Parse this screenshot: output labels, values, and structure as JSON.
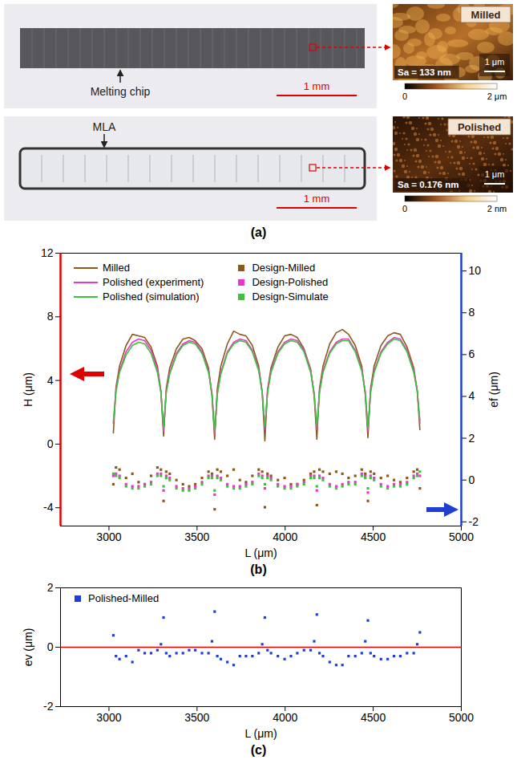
{
  "panel_a": {
    "caption": "(a)",
    "photos": [
      {
        "label": "Melting chip",
        "scale_bar": "1 mm",
        "inset": {
          "title": "Milled",
          "roughness": "Sa = 133 nm",
          "scale_bar": "1 μm",
          "colorbar_labels": [
            "0",
            "2 μm"
          ]
        }
      },
      {
        "label": "MLA",
        "scale_bar": "1 mm",
        "inset": {
          "title": "Polished",
          "roughness": "Sa = 0.176 nm",
          "scale_bar": "1 μm",
          "colorbar_labels": [
            "0",
            "2 nm"
          ]
        }
      }
    ]
  },
  "chart_data": [
    {
      "type": "line",
      "caption": "(b)",
      "x_label": "L (μm)",
      "y_label": "H (μm)",
      "y2_label": "ef (μm)",
      "xlim": [
        2725,
        5000
      ],
      "xticks": [
        3000,
        3500,
        4000,
        4500,
        5000
      ],
      "ylim": [
        -5.15,
        12
      ],
      "yticks": [
        -4,
        0,
        4,
        8,
        12
      ],
      "y2lim": [
        -2.2,
        10.85
      ],
      "y2ticks": [
        -2,
        0,
        2,
        4,
        6,
        8,
        10
      ],
      "grid": false,
      "legend": "top",
      "x": [
        3025,
        3040,
        3060,
        3097,
        3133,
        3168,
        3203,
        3239,
        3275,
        3295,
        3310,
        3325,
        3345,
        3383,
        3420,
        3455,
        3490,
        3528,
        3565,
        3585,
        3600,
        3615,
        3635,
        3672,
        3708,
        3743,
        3778,
        3814,
        3850,
        3870,
        3885,
        3900,
        3920,
        3959,
        3997,
        4033,
        4069,
        4107,
        4145,
        4165,
        4180,
        4195,
        4215,
        4253,
        4290,
        4325,
        4360,
        4398,
        4435,
        4455,
        4470,
        4485,
        4505,
        4544,
        4582,
        4618,
        4654,
        4692,
        4730,
        4750,
        4765
      ],
      "series": [
        {
          "name": "Milled",
          "type": "line",
          "color": "#8b5a1a",
          "values": [
            0.7,
            3.6,
            4.9,
            6.2,
            6.9,
            6.8,
            6.7,
            6.1,
            4.9,
            3.3,
            0.5,
            3.5,
            4.8,
            6.0,
            6.6,
            6.7,
            6.5,
            6.0,
            4.8,
            3.0,
            0.3,
            3.5,
            4.9,
            6.3,
            7.1,
            6.9,
            6.8,
            6.2,
            4.9,
            3.2,
            0.2,
            3.4,
            4.8,
            6.1,
            6.8,
            6.9,
            6.7,
            6.0,
            4.7,
            3.0,
            0.3,
            3.5,
            4.9,
            6.3,
            7.0,
            7.2,
            6.9,
            6.2,
            4.9,
            3.1,
            0.4,
            3.5,
            4.9,
            6.2,
            6.8,
            7.0,
            6.9,
            6.1,
            4.8,
            3.3,
            0.9
          ]
        },
        {
          "name": "Polished (experiment)",
          "type": "line",
          "color": "#e838c8",
          "values": [
            1.3,
            3.4,
            4.6,
            5.8,
            6.4,
            6.6,
            6.5,
            5.9,
            4.7,
            3.3,
            0.8,
            3.3,
            4.5,
            5.7,
            6.3,
            6.5,
            6.4,
            5.8,
            4.6,
            3.2,
            0.6,
            3.2,
            4.5,
            5.8,
            6.4,
            6.6,
            6.5,
            5.9,
            4.7,
            3.3,
            0.9,
            3.3,
            4.6,
            5.8,
            6.4,
            6.6,
            6.5,
            5.9,
            4.6,
            3.2,
            0.9,
            3.3,
            4.6,
            5.8,
            6.4,
            6.6,
            6.6,
            5.9,
            4.7,
            3.3,
            0.8,
            3.3,
            4.6,
            5.8,
            6.4,
            6.7,
            6.6,
            5.9,
            4.6,
            3.4,
            1.3
          ]
        },
        {
          "name": "Polished (simulation)",
          "type": "line",
          "color": "#40c040",
          "values": [
            1.4,
            3.3,
            4.5,
            5.6,
            6.2,
            6.4,
            6.3,
            5.7,
            4.5,
            3.2,
            1.0,
            3.2,
            4.4,
            5.6,
            6.2,
            6.4,
            6.3,
            5.7,
            4.5,
            3.1,
            0.8,
            3.1,
            4.4,
            5.7,
            6.3,
            6.5,
            6.4,
            5.8,
            4.6,
            3.2,
            1.1,
            3.2,
            4.5,
            5.7,
            6.3,
            6.5,
            6.4,
            5.8,
            4.5,
            3.1,
            1.1,
            3.2,
            4.5,
            5.7,
            6.3,
            6.5,
            6.5,
            5.8,
            4.6,
            3.2,
            1.0,
            3.2,
            4.5,
            5.7,
            6.3,
            6.6,
            6.5,
            5.8,
            4.5,
            3.3,
            1.5
          ]
        },
        {
          "name": "Design-Milled",
          "type": "scatter",
          "axis": "y2",
          "marker": "square",
          "color": "#8b5a1a",
          "values": [
            -0.2,
            0.6,
            0.5,
            0.1,
            0.3,
            -0.1,
            -0.2,
            0.2,
            0.6,
            0.5,
            -1.0,
            0.4,
            0.3,
            0.0,
            -0.2,
            -0.3,
            -0.2,
            0.1,
            0.4,
            0.3,
            -1.4,
            0.5,
            0.4,
            0.2,
            0.5,
            0.0,
            -0.1,
            0.2,
            0.5,
            0.4,
            -1.3,
            0.3,
            0.2,
            0.0,
            0.1,
            -0.2,
            -0.2,
            0.0,
            0.3,
            0.4,
            -1.2,
            0.5,
            0.4,
            0.3,
            0.4,
            0.3,
            0.1,
            0.2,
            0.5,
            0.3,
            -1.0,
            0.4,
            0.3,
            0.1,
            0.2,
            0.0,
            -0.1,
            0.1,
            0.4,
            0.5,
            -0.4
          ]
        },
        {
          "name": "Design-Polished",
          "type": "scatter",
          "axis": "y2",
          "marker": "square",
          "color": "#e838c8",
          "values": [
            0.2,
            0.3,
            0.2,
            -0.2,
            -0.3,
            -0.3,
            -0.2,
            -0.1,
            0.3,
            0.3,
            -0.5,
            0.2,
            0.1,
            -0.3,
            -0.4,
            -0.4,
            -0.3,
            -0.1,
            0.2,
            0.2,
            -0.7,
            0.2,
            0.1,
            -0.2,
            -0.3,
            -0.3,
            -0.2,
            -0.1,
            0.3,
            0.2,
            -0.4,
            0.2,
            0.1,
            -0.2,
            -0.3,
            -0.3,
            -0.2,
            -0.1,
            0.2,
            0.2,
            -0.5,
            0.2,
            0.1,
            -0.2,
            -0.3,
            -0.2,
            -0.1,
            -0.1,
            0.3,
            0.2,
            -0.6,
            0.2,
            0.1,
            -0.2,
            -0.3,
            -0.2,
            -0.2,
            -0.1,
            0.2,
            0.3,
            0.2
          ]
        },
        {
          "name": "Design-Simulate",
          "type": "scatter",
          "axis": "y2",
          "marker": "square",
          "color": "#40c040",
          "values": [
            0.3,
            0.2,
            0.1,
            -0.3,
            -0.4,
            -0.4,
            -0.3,
            -0.2,
            0.2,
            0.2,
            -0.3,
            0.1,
            0.0,
            -0.4,
            -0.5,
            -0.5,
            -0.4,
            -0.2,
            0.1,
            0.1,
            -0.5,
            0.1,
            0.0,
            -0.3,
            -0.4,
            -0.4,
            -0.3,
            -0.2,
            0.2,
            0.1,
            -0.2,
            0.1,
            0.0,
            -0.3,
            -0.4,
            -0.4,
            -0.3,
            -0.2,
            0.1,
            0.1,
            -0.3,
            0.1,
            0.0,
            -0.3,
            -0.4,
            -0.3,
            -0.2,
            -0.2,
            0.2,
            0.1,
            -0.4,
            0.1,
            0.0,
            -0.3,
            -0.4,
            -0.3,
            -0.3,
            -0.2,
            0.1,
            0.2,
            0.4
          ]
        }
      ]
    },
    {
      "type": "scatter",
      "caption": "(c)",
      "x_label": "L (μm)",
      "y_label": "ev (μm)",
      "xlim": [
        2725,
        5000
      ],
      "xticks": [
        3000,
        3500,
        4000,
        4500,
        5000
      ],
      "ylim": [
        -2,
        2
      ],
      "yticks": [
        -2,
        0,
        2
      ],
      "reference_y": 0,
      "grid": false,
      "legend": "top-left",
      "x": [
        3025,
        3040,
        3060,
        3097,
        3133,
        3168,
        3203,
        3239,
        3275,
        3295,
        3310,
        3325,
        3345,
        3383,
        3420,
        3455,
        3490,
        3528,
        3565,
        3585,
        3600,
        3615,
        3635,
        3672,
        3708,
        3743,
        3778,
        3814,
        3850,
        3870,
        3885,
        3900,
        3920,
        3959,
        3997,
        4033,
        4069,
        4107,
        4145,
        4165,
        4180,
        4195,
        4215,
        4253,
        4290,
        4325,
        4360,
        4398,
        4435,
        4455,
        4470,
        4485,
        4505,
        4544,
        4582,
        4618,
        4654,
        4692,
        4730,
        4750,
        4765
      ],
      "series": [
        {
          "name": "Polished-Milled",
          "marker": "square",
          "color": "#1f3fd0",
          "values": [
            0.4,
            -0.3,
            -0.4,
            -0.3,
            -0.5,
            -0.1,
            -0.2,
            -0.2,
            -0.1,
            0.1,
            1.0,
            -0.2,
            -0.3,
            -0.2,
            -0.2,
            -0.1,
            -0.1,
            -0.2,
            -0.2,
            0.2,
            1.2,
            -0.3,
            -0.4,
            -0.5,
            -0.6,
            -0.3,
            -0.3,
            -0.3,
            -0.2,
            0.1,
            1.0,
            -0.1,
            -0.2,
            -0.3,
            -0.4,
            -0.3,
            -0.2,
            -0.1,
            -0.1,
            0.2,
            1.1,
            -0.2,
            -0.3,
            -0.5,
            -0.6,
            -0.6,
            -0.3,
            -0.3,
            -0.2,
            0.2,
            0.9,
            -0.2,
            -0.3,
            -0.4,
            -0.4,
            -0.3,
            -0.3,
            -0.2,
            -0.2,
            0.1,
            0.5
          ]
        }
      ]
    }
  ]
}
